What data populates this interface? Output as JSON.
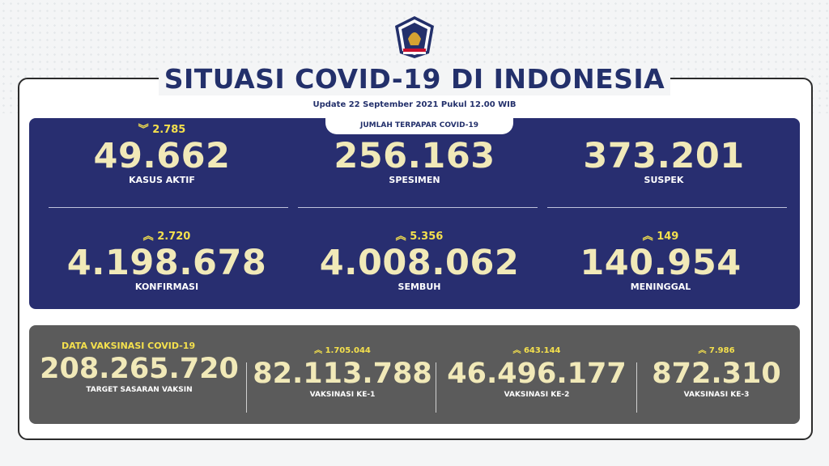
{
  "header": {
    "title": "SITUASI COVID-19 DI INDONESIA",
    "update": "Update 22 September 2021 Pukul 12.00 WIB",
    "logo_icon": "bnpb-satgas-logo"
  },
  "exposed": {
    "label": "JUMLAH TERPAPAR COVID-19",
    "stats": [
      {
        "delta": "2.785",
        "delta_dir": "down",
        "value": "49.662",
        "label": "KASUS AKTIF"
      },
      {
        "delta": "",
        "delta_dir": "",
        "value": "256.163",
        "label": "SPESIMEN"
      },
      {
        "delta": "",
        "delta_dir": "",
        "value": "373.201",
        "label": "SUSPEK"
      },
      {
        "delta": "2.720",
        "delta_dir": "up",
        "value": "4.198.678",
        "label": "KONFIRMASI"
      },
      {
        "delta": "5.356",
        "delta_dir": "up",
        "value": "4.008.062",
        "label": "SEMBUH"
      },
      {
        "delta": "149",
        "delta_dir": "up",
        "value": "140.954",
        "label": "MENINGGAL"
      }
    ]
  },
  "vaccination": {
    "heading": "DATA VAKSINASI COVID-19",
    "target": {
      "value": "208.265.720",
      "label": "TARGET SASARAN VAKSIN"
    },
    "doses": [
      {
        "delta": "1.705.044",
        "value": "82.113.788",
        "label": "VAKSINASI KE-1"
      },
      {
        "delta": "643.144",
        "value": "46.496.177",
        "label": "VAKSINASI KE-2"
      },
      {
        "delta": "7.986",
        "value": "872.310",
        "label": "VAKSINASI KE-3"
      }
    ]
  },
  "colors": {
    "navy": "#282e70",
    "title": "#23306b",
    "accent_yellow": "#f4e04d",
    "value_cream": "#f1e9b8",
    "gray_panel": "#5b5b5b"
  }
}
